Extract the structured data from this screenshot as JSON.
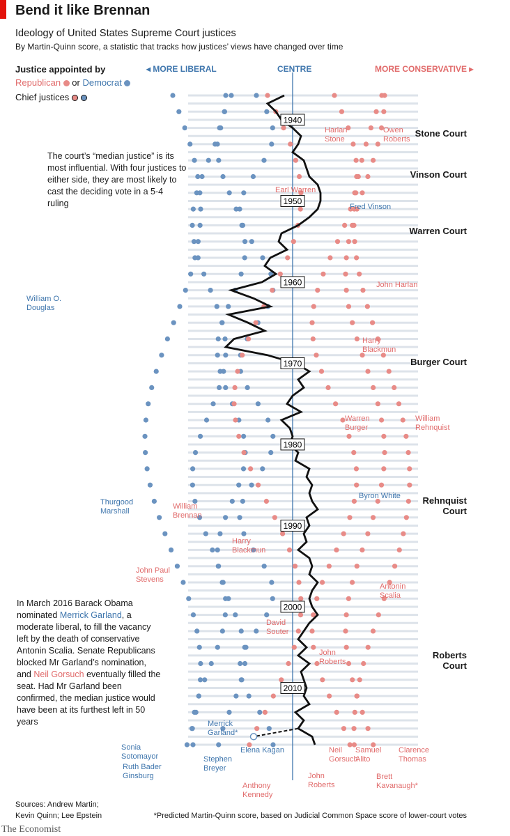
{
  "header": {
    "title": "Bend it like Brennan",
    "subtitle": "Ideology of United States Supreme Court justices",
    "description": "By Martin-Quinn score, a statistic that tracks how justices’ views have changed over time"
  },
  "legend": {
    "heading": "Justice appointed by",
    "republican": "Republican",
    "or": "or",
    "democrat": "Democrat",
    "chief": "Chief justices"
  },
  "directions": {
    "liberal": "◂ MORE LIBERAL",
    "centre": "CENTRE",
    "conservative": "MORE CONSERVATIVE ▸"
  },
  "courts": [
    "Stone Court",
    "Vinson Court",
    "Warren Court",
    "Burger Court",
    "Rehnquist Court",
    "Roberts Court"
  ],
  "annotations": {
    "median": "The court’s “median justice” is its most influential. With four justices to either side, they are most likely to cast the deciding vote in a 5-4 ruling",
    "garland_1": "In March 2016 Barack Obama nominated ",
    "garland_2": "Merrick Garland",
    "garland_3": ", a moderate liberal, to fill the vacancy left by the death of conservative Antonin Scalia. Senate Republicans blocked Mr Garland’s nomination, and ",
    "garland_4": "Neil Gorsuch",
    "garland_5": " eventually filled the seat. Had Mr Garland been confirmed, the median justice would have been at its furthest left in 50 years"
  },
  "justice_labels": [
    {
      "name": "Harlan Stone",
      "party": "R"
    },
    {
      "name": "Owen Roberts",
      "party": "R"
    },
    {
      "name": "Fred Vinson",
      "party": "D"
    },
    {
      "name": "Earl Warren",
      "party": "R"
    },
    {
      "name": "John Harlan",
      "party": "R"
    },
    {
      "name": "William O. Douglas",
      "party": "D"
    },
    {
      "name": "Harry Blackmun",
      "party": "R"
    },
    {
      "name": "Warren Burger",
      "party": "R"
    },
    {
      "name": "William Rehnquist",
      "party": "R"
    },
    {
      "name": "Byron White",
      "party": "D"
    },
    {
      "name": "Thurgood Marshall",
      "party": "D"
    },
    {
      "name": "William Brennan",
      "party": "R"
    },
    {
      "name": "Harry Blackmun",
      "party": "R"
    },
    {
      "name": "John Paul Stevens",
      "party": "R"
    },
    {
      "name": "Antonin Scalia",
      "party": "R"
    },
    {
      "name": "David Souter",
      "party": "R"
    },
    {
      "name": "John Roberts",
      "party": "R"
    },
    {
      "name": "Merrick Garland*",
      "party": "D"
    },
    {
      "name": "Sonia Sotomayor",
      "party": "D"
    },
    {
      "name": "Ruth Bader Ginsburg",
      "party": "D"
    },
    {
      "name": "Stephen Breyer",
      "party": "D"
    },
    {
      "name": "Elena Kagan",
      "party": "D"
    },
    {
      "name": "Neil Gorsuch",
      "party": "R"
    },
    {
      "name": "Samuel Alito",
      "party": "R"
    },
    {
      "name": "Clarence Thomas",
      "party": "R"
    },
    {
      "name": "Brett Kavanaugh*",
      "party": "R"
    },
    {
      "name": "John Roberts",
      "party": "R"
    },
    {
      "name": "Anthony Kennedy",
      "party": "R"
    }
  ],
  "sources": [
    "Sources: Andrew Martin;",
    "Kevin Quinn; Lee Epstein"
  ],
  "footnote": "*Predicted Martin-Quinn score, based on Judicial Common Space score of lower-court votes",
  "brand": "The Economist",
  "colors": {
    "republican": "#e88b87",
    "democrat": "#6b93c0",
    "median": "#111111",
    "centre": "#3f76ad",
    "red": "#e3120b"
  },
  "chart_data": {
    "type": "scatter",
    "x_axis": "Martin-Quinn score (liberal to conservative), centre = 0",
    "y_axis": "year",
    "y_ticks": [
      1940,
      1950,
      1960,
      1970,
      1980,
      1990,
      2000,
      2010
    ],
    "ylim": [
      1937,
      2018
    ],
    "xlim": [
      -8,
      5
    ],
    "median_justice": {
      "years": [
        1937,
        1938,
        1939,
        1940,
        1941,
        1942,
        1943,
        1944,
        1945,
        1946,
        1947,
        1948,
        1949,
        1950,
        1951,
        1952,
        1953,
        1954,
        1955,
        1956,
        1957,
        1958,
        1959,
        1960,
        1961,
        1962,
        1963,
        1964,
        1965,
        1966,
        1967,
        1968,
        1969,
        1970,
        1971,
        1972,
        1973,
        1974,
        1975,
        1976,
        1977,
        1978,
        1979,
        1980,
        1981,
        1982,
        1983,
        1984,
        1985,
        1986,
        1987,
        1988,
        1989,
        1990,
        1991,
        1992,
        1993,
        1994,
        1995,
        1996,
        1997,
        1998,
        1999,
        2000,
        2001,
        2002,
        2003,
        2004,
        2005,
        2006,
        2007,
        2008,
        2009,
        2010,
        2011,
        2012,
        2013,
        2014,
        2015,
        2016,
        2017
      ],
      "values": [
        -0.3,
        -0.9,
        -0.6,
        -0.4,
        0.0,
        0.3,
        0.2,
        0.0,
        0.4,
        0.5,
        0.6,
        0.9,
        1.0,
        1.0,
        0.9,
        0.6,
        0.2,
        -0.4,
        -0.5,
        -0.2,
        -0.8,
        -1.0,
        -0.6,
        -1.1,
        -2.2,
        -1.4,
        -0.8,
        -2.3,
        -1.6,
        -1.0,
        -2.1,
        -2.4,
        -0.9,
        0.1,
        0.6,
        0.2,
        0.4,
        0.0,
        -0.2,
        0.3,
        -0.4,
        -0.1,
        0.0,
        -0.1,
        0.2,
        0.1,
        0.6,
        0.5,
        0.7,
        0.6,
        0.7,
        0.9,
        0.5,
        0.6,
        0.4,
        0.5,
        0.2,
        0.6,
        0.7,
        0.6,
        0.9,
        0.7,
        0.6,
        0.7,
        0.9,
        0.6,
        0.4,
        0.2,
        0.5,
        0.2,
        0.6,
        0.3,
        0.4,
        0.5,
        0.4,
        0.6,
        0.1,
        0.4,
        0.2,
        0.7,
        0.8
      ]
    },
    "garland_counterfactual": {
      "year": 2016,
      "value": -1.4
    }
  }
}
